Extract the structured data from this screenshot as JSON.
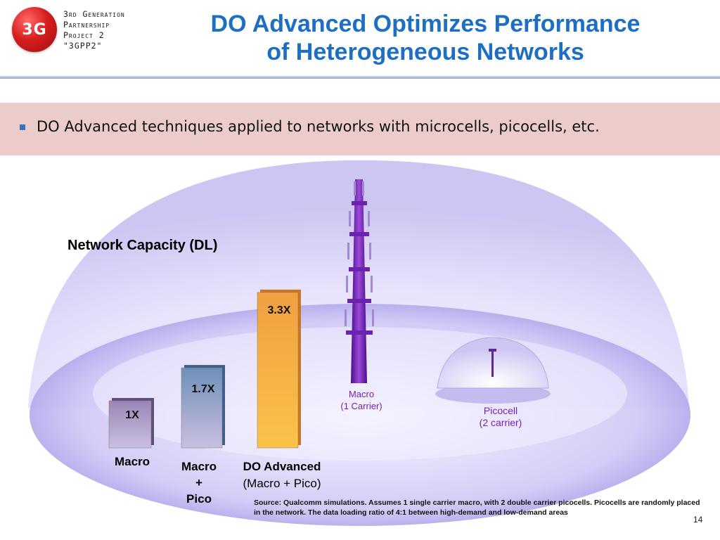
{
  "header": {
    "logo_mark": "3G",
    "logo_text": "3rd Generation\nPartnership\nProject 2\n\"3GPP2\"",
    "title_line1": "DO Advanced Optimizes Performance",
    "title_line2": "of Heterogeneous Networks"
  },
  "bullet": {
    "text": "DO Advanced techniques applied to networks with microcells, picocells, etc."
  },
  "illustration": {
    "macro_tower_label_1": "Macro",
    "macro_tower_label_2": "(1 Carrier)",
    "picocell_label_1": "Picocell",
    "picocell_label_2": "(2 carrier)"
  },
  "chart_data": {
    "type": "bar",
    "title": "Network Capacity (DL)",
    "categories": [
      "Macro",
      "Macro + Pico",
      "DO Advanced (Macro + Pico)"
    ],
    "values": [
      1.0,
      1.7,
      3.3
    ],
    "value_labels": [
      "1X",
      "1.7X",
      "3.3X"
    ],
    "category_lines": [
      [
        "Macro"
      ],
      [
        "Macro",
        "+",
        "Pico"
      ],
      [
        "DO Advanced",
        "(Macro + Pico)"
      ]
    ],
    "bar_colors": [
      "#9a86b6",
      "#6f8fb8",
      "#f0a040"
    ],
    "xlabel": "",
    "ylabel": ""
  },
  "footer": {
    "source": "Source: Qualcomm simulations. Assumes 1 single carrier macro, with 2 double carrier picocells. Picocells are randomly placed in the network. The data loading ratio of 4:1 between high-demand and low-demand areas",
    "page_number": "14"
  }
}
